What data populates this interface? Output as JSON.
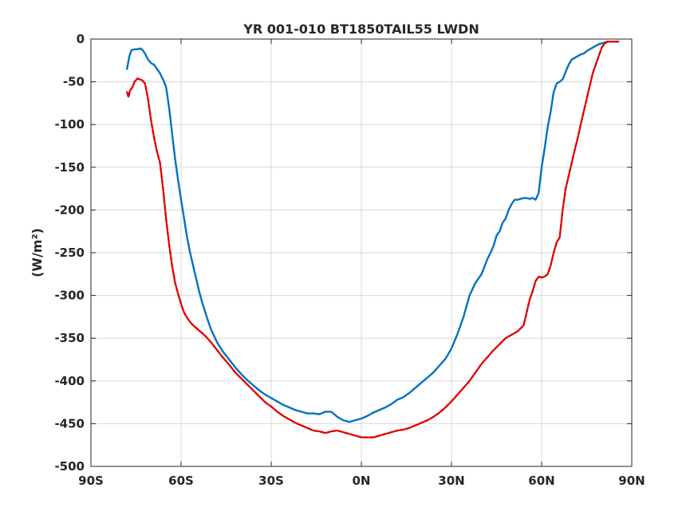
{
  "chart_data": {
    "type": "line",
    "title": "YR 001-010 BT1850TAIL55 LWDN",
    "xlabel": "",
    "ylabel": "(W/m²)",
    "xlim": [
      -90,
      90
    ],
    "ylim": [
      -500,
      0
    ],
    "xticks": [
      -90,
      -60,
      -30,
      0,
      30,
      60,
      90
    ],
    "xtick_labels": [
      "90S",
      "60S",
      "30S",
      "0N",
      "30N",
      "60N",
      "90N"
    ],
    "yticks": [
      0,
      -50,
      -100,
      -150,
      -200,
      -250,
      -300,
      -350,
      -400,
      -450,
      -500
    ],
    "ytick_labels": [
      "0",
      "-50",
      "-100",
      "-150",
      "-200",
      "-250",
      "-300",
      "-350",
      "-400",
      "-450",
      "-500"
    ],
    "grid": true,
    "series": [
      {
        "color": "#0072BD",
        "style": "solid",
        "x": [
          -78,
          -77.2,
          -76.5,
          -75.5,
          -74.5,
          -73.8,
          -73,
          -72,
          -71,
          -70,
          -69,
          -68,
          -67,
          -66.5,
          -66,
          -65,
          -64,
          -63,
          -62,
          -61,
          -60,
          -59,
          -58,
          -57,
          -56,
          -55,
          -54,
          -53,
          -52,
          -51,
          -50,
          -48,
          -46,
          -44,
          -42,
          -40,
          -38,
          -36,
          -34,
          -32,
          -30,
          -28,
          -26,
          -24,
          -22,
          -20,
          -18,
          -16,
          -14,
          -12,
          -10,
          -8,
          -6,
          -4,
          -2,
          0,
          2,
          4,
          6,
          8,
          10,
          12,
          14,
          16,
          18,
          20,
          22,
          24,
          26,
          28,
          30,
          32,
          34,
          36,
          38,
          40,
          41,
          42,
          43,
          44,
          45,
          46,
          47,
          48,
          49,
          50,
          51,
          52,
          53,
          54,
          55,
          56,
          57,
          58,
          59,
          60,
          61,
          62,
          63,
          64,
          65,
          66,
          67,
          67.5,
          68,
          69,
          70,
          71,
          72,
          73,
          74,
          75,
          76,
          77,
          78,
          79,
          80,
          81,
          82,
          83,
          84,
          85,
          85.5
        ],
        "y": [
          -35,
          -20,
          -13,
          -12,
          -12,
          -11,
          -12,
          -17,
          -24,
          -28,
          -30,
          -35,
          -40,
          -44,
          -47,
          -56,
          -80,
          -110,
          -140,
          -165,
          -188,
          -210,
          -232,
          -250,
          -265,
          -280,
          -295,
          -308,
          -319,
          -330,
          -340,
          -355,
          -366,
          -375,
          -384,
          -392,
          -399,
          -405,
          -411,
          -416,
          -420,
          -424,
          -428,
          -431,
          -434,
          -436,
          -438,
          -438,
          -439,
          -436,
          -436,
          -442,
          -446,
          -448,
          -446,
          -444,
          -441,
          -437,
          -434,
          -431,
          -427,
          -422,
          -419,
          -414,
          -408,
          -402,
          -396,
          -390,
          -382,
          -374,
          -362,
          -345,
          -325,
          -300,
          -285,
          -275,
          -266,
          -257,
          -250,
          -242,
          -230,
          -225,
          -215,
          -210,
          -200,
          -193,
          -188,
          -188,
          -187,
          -186,
          -186,
          -187,
          -186,
          -188,
          -180,
          -150,
          -128,
          -103,
          -85,
          -62,
          -52,
          -50,
          -47,
          -43,
          -38,
          -30,
          -24,
          -22,
          -20,
          -18,
          -17,
          -14,
          -12,
          -10,
          -8,
          -6,
          -5,
          -4,
          -3,
          -3,
          -3,
          -3,
          -3
        ],
        "_note_x": "",
        "_unused": ""
      },
      {
        "color": "#E00000",
        "style": "dashed",
        "x": [
          -78,
          -77.5,
          -77,
          -76.5,
          -76,
          -75.5,
          -75,
          -74.5,
          -74,
          -73,
          -72,
          -71,
          -70,
          -69,
          -68,
          -67,
          -66,
          -65,
          -64,
          -63,
          -62,
          -61,
          -60,
          -59,
          -58,
          -57,
          -56,
          -55,
          -54,
          -52,
          -50,
          -48,
          -46,
          -44,
          -42,
          -40,
          -38,
          -36,
          -34,
          -32,
          -30,
          -28,
          -26,
          -24,
          -22,
          -20,
          -18,
          -16,
          -14,
          -12,
          -10,
          -8,
          -6,
          -4,
          -2,
          0,
          2,
          4,
          6,
          8,
          10,
          12,
          14,
          16,
          18,
          20,
          22,
          24,
          26,
          28,
          30,
          32,
          34,
          36,
          38,
          40,
          42,
          44,
          46,
          48,
          50,
          52,
          54,
          55,
          56,
          57,
          58,
          59,
          60,
          61,
          62,
          63,
          64,
          65,
          66,
          67,
          68,
          69,
          70,
          71,
          72,
          73,
          74,
          75,
          76,
          77,
          78,
          79,
          80,
          81,
          82,
          83,
          84,
          85,
          85.5
        ],
        "y": [
          -62,
          -68,
          -60,
          -58,
          -55,
          -50,
          -48,
          -46,
          -47,
          -48,
          -52,
          -70,
          -95,
          -115,
          -132,
          -145,
          -175,
          -210,
          -240,
          -265,
          -285,
          -298,
          -310,
          -320,
          -326,
          -331,
          -335,
          -338,
          -341,
          -347,
          -355,
          -364,
          -373,
          -381,
          -390,
          -397,
          -404,
          -411,
          -418,
          -425,
          -430,
          -436,
          -441,
          -445,
          -449,
          -452,
          -455,
          -458,
          -459,
          -461,
          -459,
          -458,
          -460,
          -462,
          -464,
          -466,
          -466,
          -466,
          -464,
          -462,
          -460,
          -458,
          -457,
          -455,
          -452,
          -449,
          -446,
          -442,
          -437,
          -431,
          -424,
          -416,
          -408,
          -400,
          -390,
          -380,
          -372,
          -364,
          -357,
          -350,
          -346,
          -342,
          -335,
          -320,
          -305,
          -295,
          -283,
          -278,
          -279,
          -278,
          -275,
          -265,
          -250,
          -238,
          -232,
          -200,
          -175,
          -160,
          -145,
          -130,
          -116,
          -100,
          -85,
          -70,
          -55,
          -40,
          -30,
          -20,
          -10,
          -5,
          -3,
          -3,
          -3,
          -3,
          -3
        ]
      }
    ]
  }
}
